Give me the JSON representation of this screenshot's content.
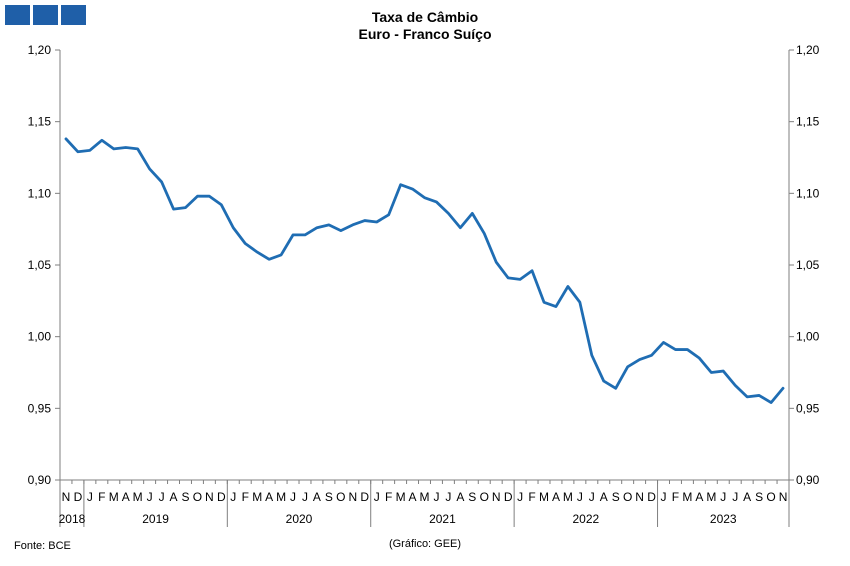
{
  "header": {
    "title_line1": "Taxa de Câmbio",
    "title_line2": "Euro - Franco Suíço"
  },
  "footer": {
    "source": "Fonte: BCE",
    "credit": "(Gráfico: GEE)"
  },
  "colors": {
    "line": "#1f6db3",
    "logo": "#1f5fa8",
    "axis": "#7f7f7f"
  },
  "chart_data": {
    "type": "line",
    "title": "Taxa de Câmbio",
    "subtitle": "Euro - Franco Suíço",
    "xlabel": "",
    "ylabel": "",
    "ylim": [
      0.9,
      1.2
    ],
    "y_ticks": [
      "0,90",
      "0,95",
      "1,00",
      "1,05",
      "1,10",
      "1,15",
      "1,20"
    ],
    "y_tick_values": [
      0.9,
      0.95,
      1.0,
      1.05,
      1.1,
      1.15,
      1.2
    ],
    "secondary_y_axis": true,
    "grid": false,
    "legend": "none",
    "month_labels": [
      "N",
      "D",
      "J",
      "F",
      "M",
      "A",
      "M",
      "J",
      "J",
      "A",
      "S",
      "O",
      "N",
      "D",
      "J",
      "F",
      "M",
      "A",
      "M",
      "J",
      "J",
      "A",
      "S",
      "O",
      "N",
      "D",
      "J",
      "F",
      "M",
      "A",
      "M",
      "J",
      "J",
      "A",
      "S",
      "O",
      "N",
      "D",
      "J",
      "F",
      "M",
      "A",
      "M",
      "J",
      "J",
      "A",
      "S",
      "O",
      "N",
      "D",
      "J",
      "F",
      "M",
      "A",
      "M",
      "J",
      "J",
      "A",
      "S",
      "O",
      "N"
    ],
    "years": [
      {
        "label": "2018",
        "start": 0,
        "count": 2
      },
      {
        "label": "2019",
        "start": 2,
        "count": 12
      },
      {
        "label": "2020",
        "start": 14,
        "count": 12
      },
      {
        "label": "2021",
        "start": 26,
        "count": 12
      },
      {
        "label": "2022",
        "start": 38,
        "count": 12
      },
      {
        "label": "2023",
        "start": 50,
        "count": 11
      }
    ],
    "series": [
      {
        "values": [
          1.138,
          1.129,
          1.13,
          1.137,
          1.131,
          1.132,
          1.131,
          1.117,
          1.108,
          1.089,
          1.09,
          1.098,
          1.098,
          1.092,
          1.076,
          1.065,
          1.059,
          1.054,
          1.057,
          1.071,
          1.071,
          1.076,
          1.078,
          1.074,
          1.078,
          1.081,
          1.08,
          1.085,
          1.106,
          1.103,
          1.097,
          1.094,
          1.086,
          1.076,
          1.086,
          1.072,
          1.052,
          1.041,
          1.04,
          1.046,
          1.024,
          1.021,
          1.035,
          1.024,
          0.987,
          0.969,
          0.964,
          0.979,
          0.984,
          0.987,
          0.996,
          0.991,
          0.991,
          0.985,
          0.975,
          0.976,
          0.966,
          0.958,
          0.959,
          0.954,
          0.964
        ]
      }
    ]
  }
}
